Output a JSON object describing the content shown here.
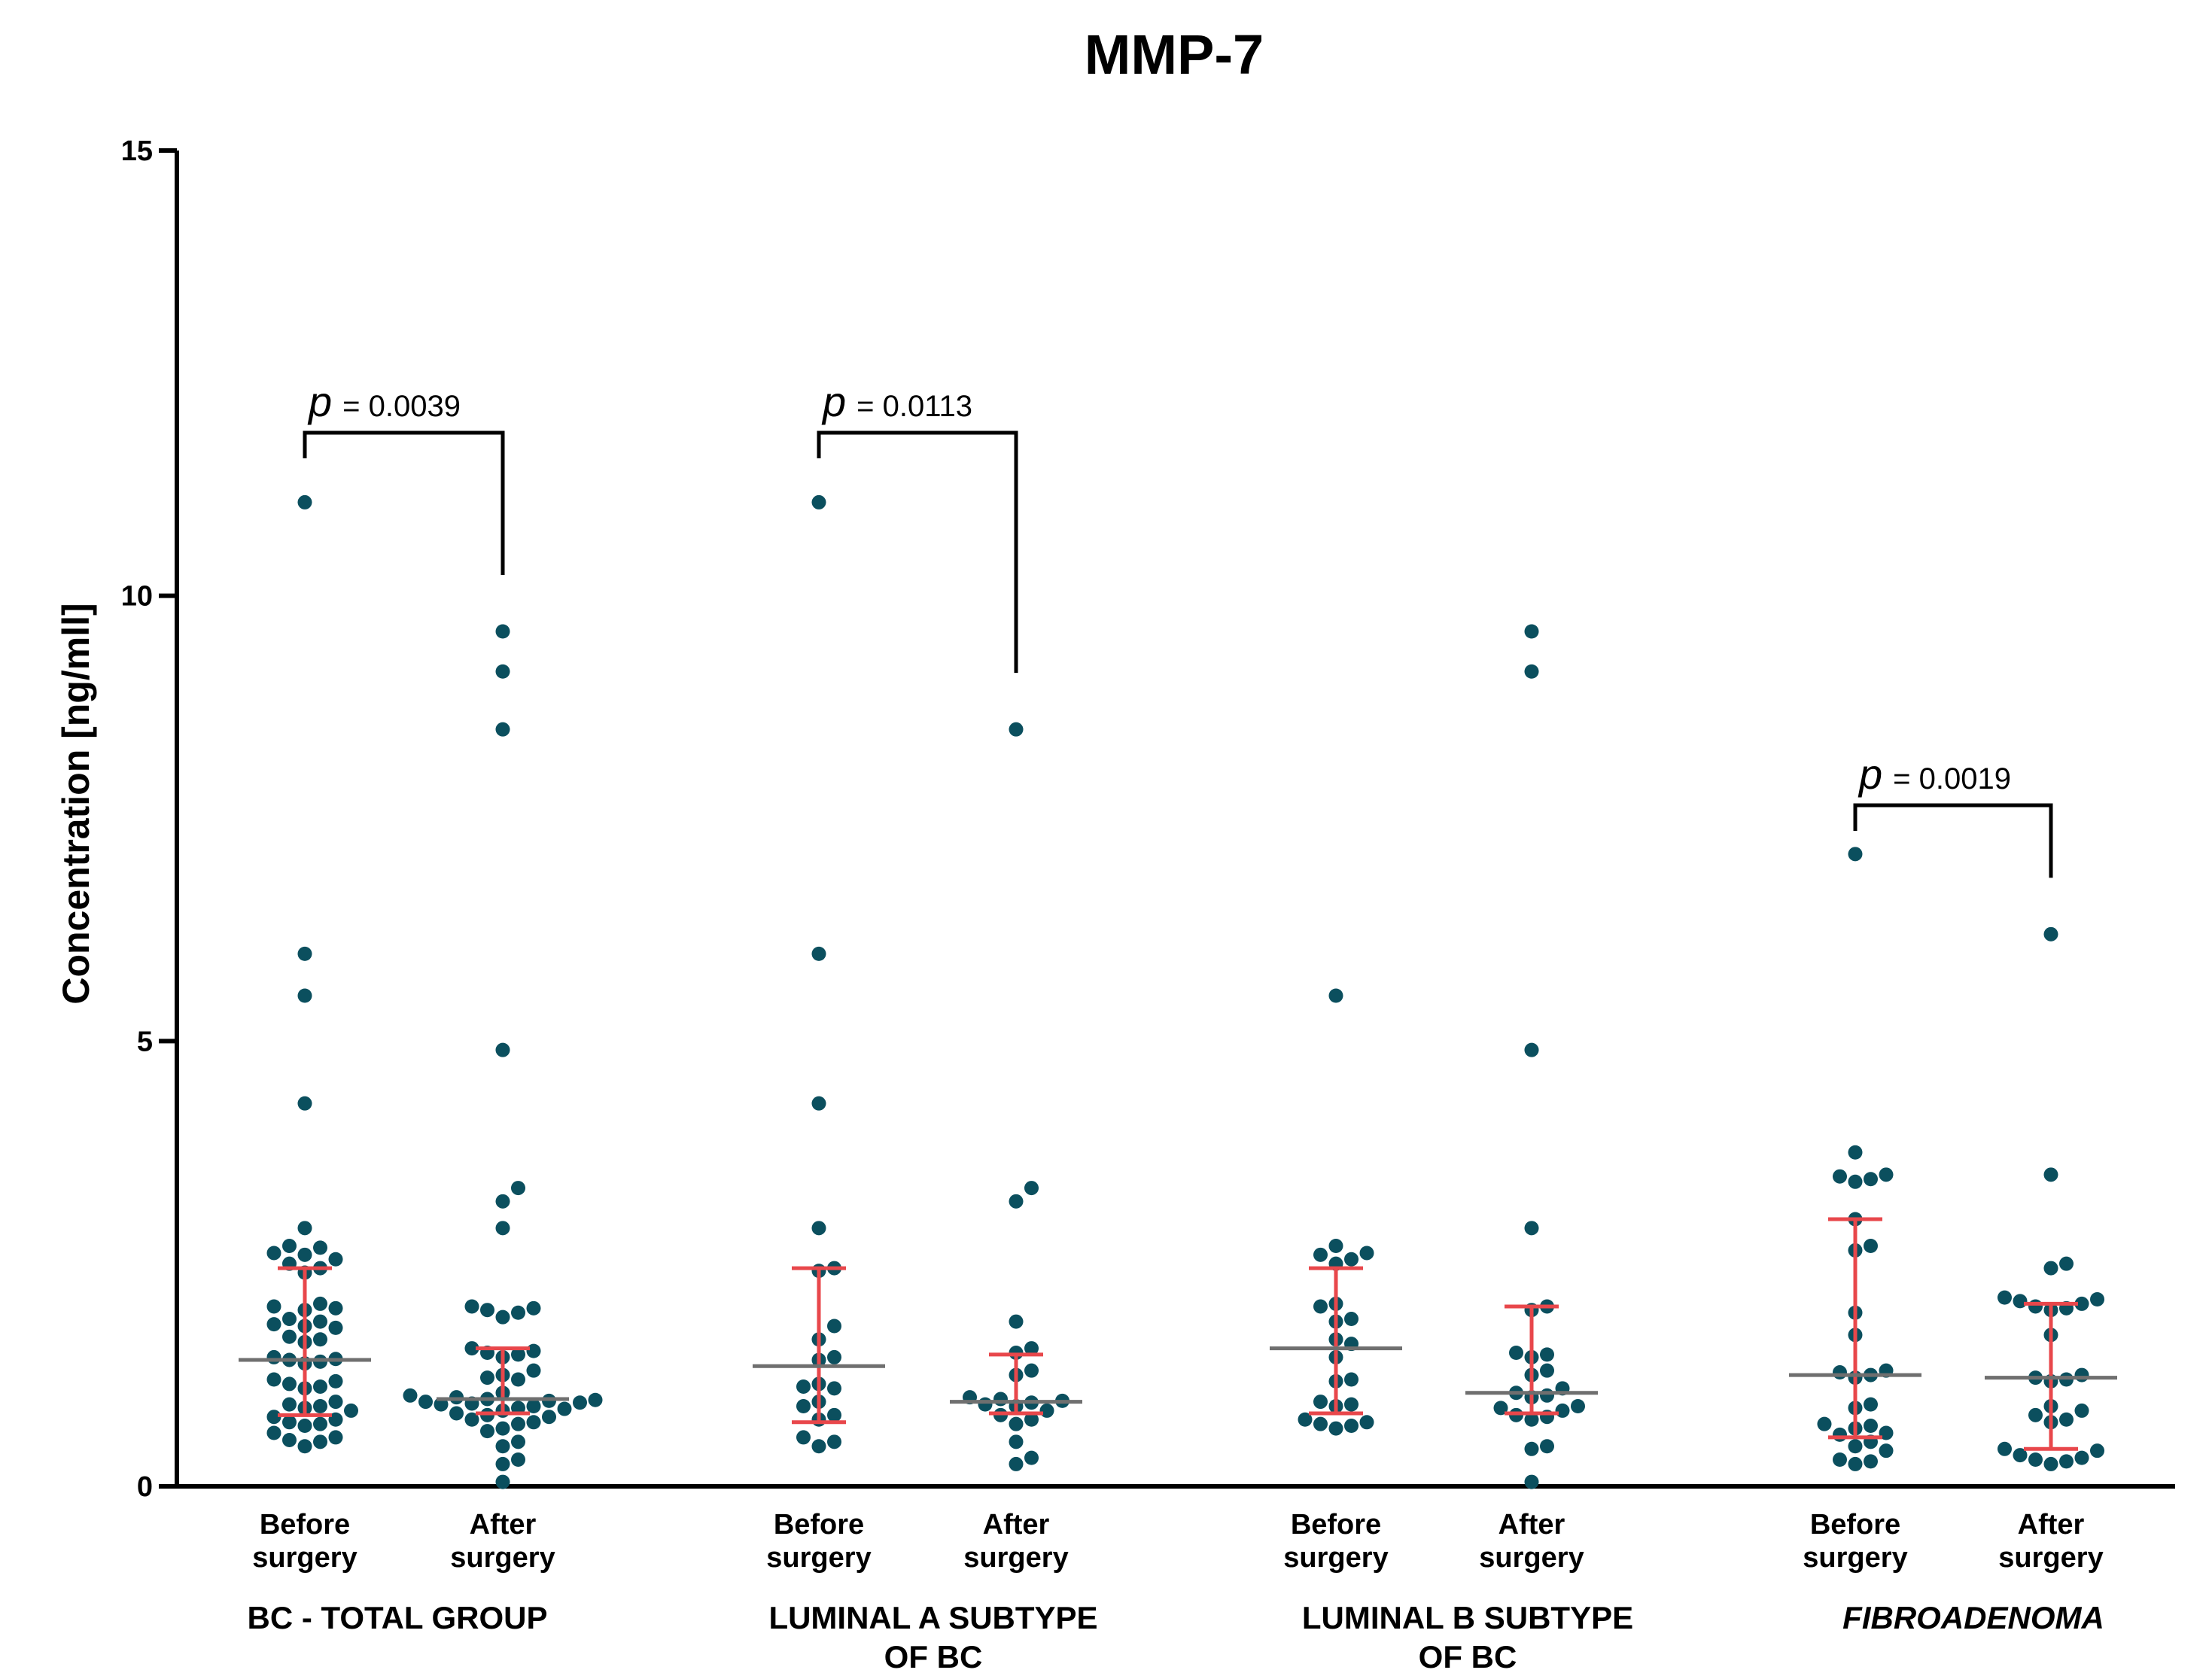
{
  "chart_data": {
    "type": "scatter",
    "title": "MMP-7",
    "ylabel": "Concentration [ng/mll]",
    "xlabel": "",
    "ylim": [
      0,
      15
    ],
    "yticks": [
      0,
      5,
      10,
      15
    ],
    "point_color": "#0b4f5e",
    "errorbar_color": "#e8474b",
    "median_color": "#6f6f6f",
    "groups": [
      {
        "name": "BC - TOTAL GROUP",
        "name_lines": [
          "BC - TOTAL GROUP"
        ],
        "italic": false,
        "series": [
          {
            "label_lines": [
              "Before",
              "surgery"
            ],
            "median": 1.42,
            "iqr": [
              0.8,
              2.45
            ],
            "values": [
              11.05,
              5.98,
              5.51,
              4.3,
              2.9,
              2.7,
              2.68,
              2.62,
              2.6,
              2.55,
              2.5,
              2.45,
              2.4,
              2.05,
              2.02,
              2.0,
              1.98,
              1.88,
              1.85,
              1.82,
              1.8,
              1.78,
              1.68,
              1.65,
              1.62,
              1.45,
              1.43,
              1.42,
              1.4,
              1.38,
              1.2,
              1.18,
              1.15,
              1.12,
              1.1,
              0.95,
              0.92,
              0.9,
              0.88,
              0.85,
              0.78,
              0.75,
              0.72,
              0.7,
              0.68,
              0.6,
              0.55,
              0.52,
              0.5,
              0.45
            ]
          },
          {
            "label_lines": [
              "After",
              "surgery"
            ],
            "median": 0.98,
            "iqr": [
              0.82,
              1.55
            ],
            "values": [
              9.6,
              9.15,
              8.5,
              4.9,
              3.35,
              3.2,
              2.9,
              2.02,
              2.0,
              1.98,
              1.95,
              1.9,
              1.55,
              1.52,
              1.5,
              1.48,
              1.45,
              1.3,
              1.25,
              1.22,
              1.2,
              1.05,
              1.02,
              1.0,
              0.98,
              0.97,
              0.96,
              0.95,
              0.94,
              0.93,
              0.92,
              0.9,
              0.88,
              0.87,
              0.85,
              0.82,
              0.8,
              0.78,
              0.75,
              0.72,
              0.7,
              0.65,
              0.62,
              0.5,
              0.45,
              0.3,
              0.25,
              0.05
            ]
          }
        ],
        "p_label": "= 0.0039"
      },
      {
        "name": "LUMINAL A SUBTYPE OF BC",
        "name_lines": [
          "LUMINAL A SUBTYPE",
          "OF BC"
        ],
        "italic": false,
        "series": [
          {
            "label_lines": [
              "Before",
              "surgery"
            ],
            "median": 1.35,
            "iqr": [
              0.72,
              2.45
            ],
            "values": [
              11.05,
              5.98,
              4.3,
              2.9,
              2.45,
              2.42,
              1.8,
              1.65,
              1.45,
              1.42,
              1.15,
              1.12,
              1.1,
              0.95,
              0.9,
              0.8,
              0.75,
              0.55,
              0.5,
              0.45
            ]
          },
          {
            "label_lines": [
              "After",
              "surgery"
            ],
            "median": 0.95,
            "iqr": [
              0.82,
              1.48
            ],
            "values": [
              8.5,
              3.35,
              3.2,
              1.85,
              1.55,
              1.5,
              1.3,
              1.25,
              1.0,
              0.98,
              0.96,
              0.94,
              0.92,
              0.9,
              0.85,
              0.8,
              0.75,
              0.7,
              0.5,
              0.32,
              0.25
            ]
          }
        ],
        "p_label": "= 0.0113"
      },
      {
        "name": "LUMINAL B SUBTYPE OF BC",
        "name_lines": [
          "LUMINAL B SUBTYPE",
          "OF BC"
        ],
        "italic": false,
        "series": [
          {
            "label_lines": [
              "Before",
              "surgery"
            ],
            "median": 1.55,
            "iqr": [
              0.82,
              2.45
            ],
            "values": [
              5.51,
              2.7,
              2.62,
              2.6,
              2.55,
              2.5,
              2.05,
              2.02,
              1.88,
              1.85,
              1.65,
              1.6,
              1.45,
              1.2,
              1.18,
              0.95,
              0.92,
              0.9,
              0.75,
              0.72,
              0.7,
              0.68,
              0.65
            ]
          },
          {
            "label_lines": [
              "After",
              "surgery"
            ],
            "median": 1.05,
            "iqr": [
              0.82,
              2.02
            ],
            "values": [
              9.6,
              9.15,
              4.9,
              2.9,
              2.02,
              1.98,
              1.5,
              1.48,
              1.45,
              1.3,
              1.25,
              1.1,
              1.05,
              1.02,
              1.0,
              0.9,
              0.88,
              0.85,
              0.8,
              0.78,
              0.75,
              0.45,
              0.42,
              0.05
            ]
          }
        ],
        "p_label": ""
      },
      {
        "name": "FIBROADENOMA",
        "name_lines": [
          "FIBROADENOMA"
        ],
        "italic": true,
        "series": [
          {
            "label_lines": [
              "Before",
              "surgery"
            ],
            "median": 1.25,
            "iqr": [
              0.55,
              3.0
            ],
            "values": [
              7.1,
              3.75,
              3.5,
              3.48,
              3.45,
              3.42,
              3.0,
              2.7,
              2.65,
              1.95,
              1.7,
              1.3,
              1.28,
              1.25,
              1.22,
              0.92,
              0.88,
              0.7,
              0.68,
              0.65,
              0.6,
              0.58,
              0.5,
              0.45,
              0.4,
              0.3,
              0.28,
              0.25
            ]
          },
          {
            "label_lines": [
              "After",
              "surgery"
            ],
            "median": 1.22,
            "iqr": [
              0.42,
              2.05
            ],
            "values": [
              6.2,
              3.5,
              2.5,
              2.45,
              2.12,
              2.1,
              2.08,
              2.05,
              2.02,
              2.0,
              1.98,
              1.7,
              1.25,
              1.22,
              1.2,
              1.18,
              0.9,
              0.85,
              0.8,
              0.75,
              0.72,
              0.42,
              0.4,
              0.35,
              0.32,
              0.3,
              0.28,
              0.25
            ]
          }
        ],
        "p_label": "= 0.0019"
      }
    ]
  }
}
